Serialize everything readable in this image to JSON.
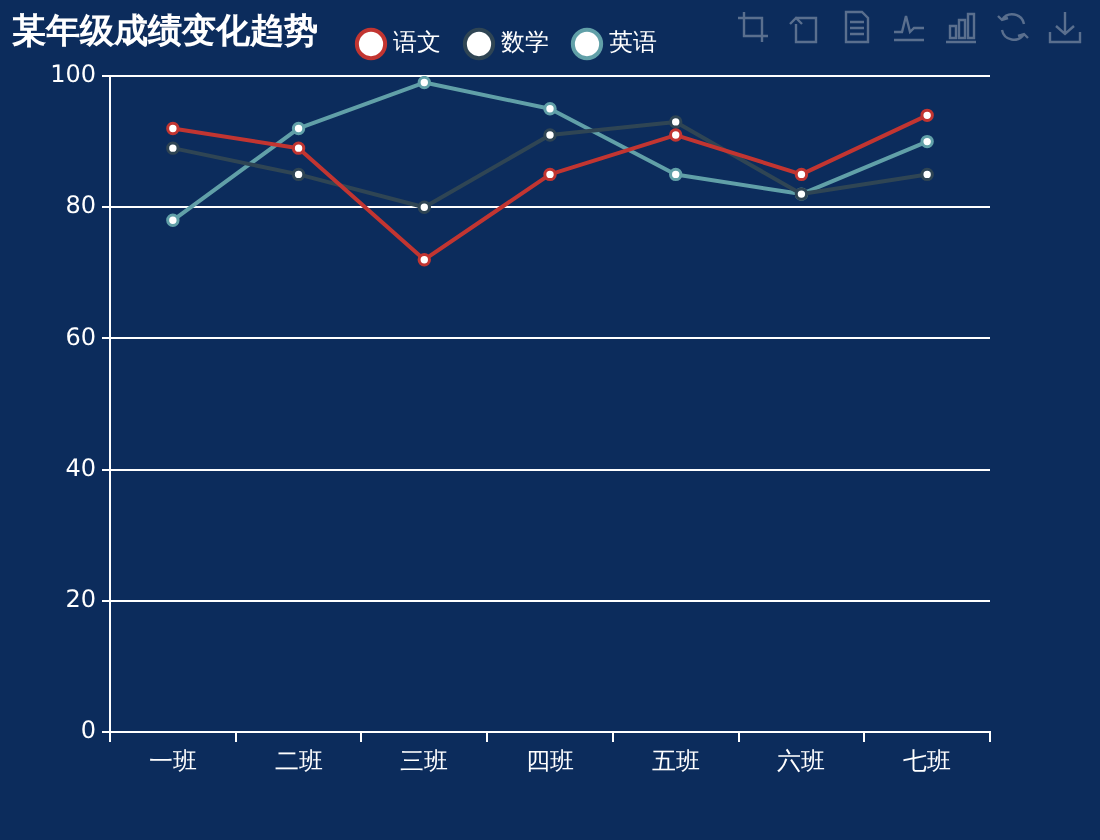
{
  "chart_data": {
    "type": "line",
    "title": "某年级成绩变化趋势",
    "categories": [
      "一班",
      "二班",
      "三班",
      "四班",
      "五班",
      "六班",
      "七班"
    ],
    "series": [
      {
        "name": "语文",
        "color": "#c23531",
        "values": [
          92,
          89,
          72,
          85,
          91,
          85,
          94
        ]
      },
      {
        "name": "数学",
        "color": "#2f4554",
        "values": [
          89,
          85,
          80,
          91,
          93,
          82,
          85
        ]
      },
      {
        "name": "英语",
        "color": "#61a0a8",
        "values": [
          78,
          92,
          99,
          95,
          85,
          82,
          90
        ]
      }
    ],
    "ylim": [
      0,
      100
    ],
    "yticks": [
      0,
      20,
      40,
      60,
      80,
      100
    ],
    "grid": "y",
    "legend": "top",
    "marker": "circle",
    "line_style": "solid"
  }
}
